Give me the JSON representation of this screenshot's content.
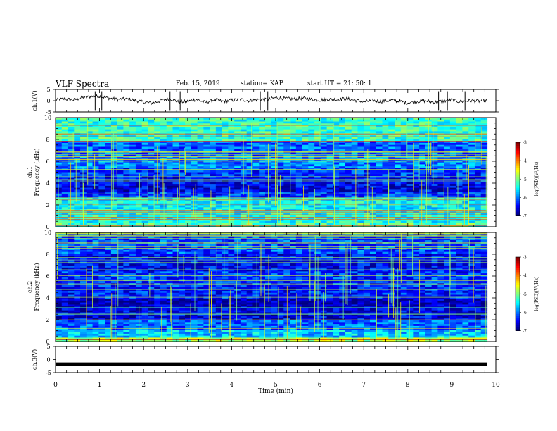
{
  "header": {
    "title": "VLF Spectra",
    "date": "Feb. 15, 2019",
    "station": "station= KAP",
    "start": "start  UT  =  21: 50: 1"
  },
  "chart_data": [
    {
      "type": "line",
      "panel": "ch1-waveform",
      "ylabel": "ch.1(V)",
      "ytick_labels": [
        "5",
        "0",
        "-5"
      ],
      "ylim": [
        -5,
        5
      ],
      "xlim": [
        0,
        10
      ],
      "x_end": 9.8,
      "series": [
        {
          "x": [
            0,
            0.2,
            0.4,
            0.6,
            0.8,
            1.0,
            1.2,
            1.4,
            1.6,
            1.8,
            2.0,
            2.2,
            2.4,
            2.6,
            2.8,
            3.0,
            3.2,
            3.4,
            3.6,
            3.8,
            4.0,
            4.2,
            4.4,
            4.6,
            4.8,
            5.0,
            5.2,
            5.4,
            5.6,
            5.8,
            6.0,
            6.2,
            6.4,
            6.6,
            6.8,
            7.0,
            7.2,
            7.4,
            7.6,
            7.8,
            8.0,
            8.2,
            8.4,
            8.6,
            8.8,
            9.0,
            9.2,
            9.4,
            9.6,
            9.8
          ],
          "values": [
            0.3,
            0.8,
            0.3,
            1.3,
            1.8,
            2.0,
            1.2,
            0.5,
            0.8,
            0.2,
            -0.6,
            -1.1,
            0.1,
            1.0,
            -0.6,
            -0.3,
            0.6,
            -0.8,
            0.4,
            -0.3,
            0.2,
            0.5,
            0.0,
            0.6,
            0.4,
            1.4,
            1.0,
            0.7,
            1.1,
            0.6,
            0.3,
            0.7,
            0.5,
            0.9,
            0.2,
            -0.5,
            0.1,
            -0.3,
            0.2,
            -0.2,
            -0.9,
            -0.3,
            0.0,
            -0.7,
            -0.2,
            0.3,
            -0.5,
            0.1,
            -0.2,
            0.3
          ]
        }
      ]
    },
    {
      "type": "heatmap",
      "panel": "ch1-spectrogram",
      "ylabel_lines": [
        "ch.1",
        "Frequency (kHz)"
      ],
      "ytick_labels": [
        "0",
        "2",
        "4",
        "6",
        "8",
        "10"
      ],
      "ylim": [
        0,
        10
      ],
      "xlim": [
        0,
        10
      ],
      "colorbar": {
        "label": "log(PSD)(V²/Hz)",
        "ticks": [
          "-3",
          "-4",
          "-5",
          "-6",
          "-7"
        ],
        "range": [
          -7,
          -3
        ]
      },
      "band_levels": [
        {
          "f": [
            0,
            0.4
          ],
          "level": -5.2
        },
        {
          "f": [
            0.4,
            1.6
          ],
          "level": -5.4
        },
        {
          "f": [
            1.6,
            2.6
          ],
          "level": -5.5
        },
        {
          "f": [
            2.6,
            3.2
          ],
          "level": -6.3
        },
        {
          "f": [
            3.2,
            3.8
          ],
          "level": -6.6
        },
        {
          "f": [
            3.8,
            4.6
          ],
          "level": -6.5
        },
        {
          "f": [
            4.6,
            5.4
          ],
          "level": -6.3
        },
        {
          "f": [
            5.4,
            6.4
          ],
          "level": -6.0
        },
        {
          "f": [
            6.4,
            7.8
          ],
          "level": -6.1
        },
        {
          "f": [
            7.8,
            10
          ],
          "level": -5.3
        }
      ]
    },
    {
      "type": "heatmap",
      "panel": "ch2-spectrogram",
      "ylabel_lines": [
        "ch.2",
        "Frequency (kHz)"
      ],
      "ytick_labels": [
        "0",
        "2",
        "4",
        "6",
        "8",
        "10"
      ],
      "ylim": [
        0,
        10
      ],
      "xlim": [
        0,
        10
      ],
      "colorbar": {
        "label": "log(PSD)(V²/Hz)",
        "ticks": [
          "-3",
          "-4",
          "-5",
          "-6",
          "-7"
        ],
        "range": [
          -7,
          -3
        ]
      },
      "band_levels": [
        {
          "f": [
            0,
            0.4
          ],
          "level": -4.8
        },
        {
          "f": [
            0.4,
            1.0
          ],
          "level": -5.7
        },
        {
          "f": [
            1.0,
            2.0
          ],
          "level": -6.1
        },
        {
          "f": [
            2.0,
            3.0
          ],
          "level": -6.6
        },
        {
          "f": [
            3.0,
            4.0
          ],
          "level": -6.8
        },
        {
          "f": [
            4.0,
            5.0
          ],
          "level": -6.4
        },
        {
          "f": [
            5.0,
            6.4
          ],
          "level": -6.3
        },
        {
          "f": [
            6.4,
            8.0
          ],
          "level": -6.5
        },
        {
          "f": [
            8.0,
            10
          ],
          "level": -6.2
        }
      ]
    },
    {
      "type": "line",
      "panel": "ch3-waveform",
      "ylabel": "ch.3(V)",
      "ytick_labels": [
        "5",
        "0",
        "-5"
      ],
      "ylim": [
        -5,
        5
      ],
      "xlim": [
        0,
        10
      ],
      "x_end": 9.8,
      "series": [
        {
          "x": [
            0,
            9.8
          ],
          "values": [
            -1.8,
            -1.8
          ]
        }
      ]
    }
  ],
  "xaxis": {
    "label": "Time  (min)",
    "ticks": [
      "0",
      "1",
      "2",
      "3",
      "4",
      "5",
      "6",
      "7",
      "8",
      "9",
      "10"
    ],
    "range": [
      0,
      10
    ]
  }
}
